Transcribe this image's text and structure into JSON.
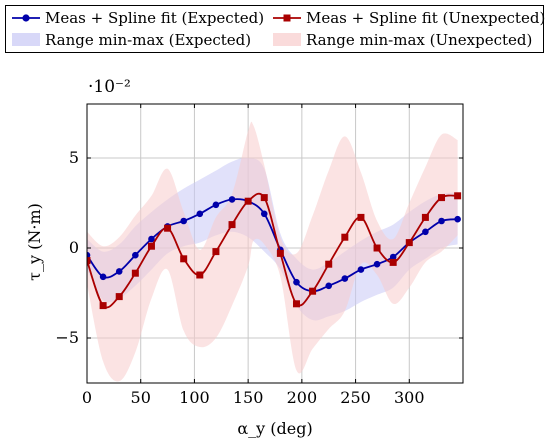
{
  "chart_data": {
    "type": "line",
    "xlabel": "α_y (deg)",
    "ylabel": "τ_y (N·m)",
    "y_scale_label": "·10⁻²",
    "xlim": [
      0,
      350
    ],
    "ylim": [
      -7.5,
      8
    ],
    "x_ticks": [
      0,
      50,
      100,
      150,
      200,
      250,
      300
    ],
    "y_ticks": [
      -5,
      0,
      5
    ],
    "grid": true,
    "legend_position": "top",
    "series": [
      {
        "name": "Meas + Spline fit (Expected)",
        "kind": "line",
        "color": "#0000aa",
        "marker": "circle",
        "x": [
          0,
          15,
          30,
          45,
          60,
          75,
          90,
          105,
          120,
          135,
          150,
          165,
          180,
          195,
          210,
          225,
          240,
          255,
          270,
          285,
          300,
          315,
          330,
          345
        ],
        "y": [
          -0.4,
          -1.6,
          -1.3,
          -0.4,
          0.5,
          1.2,
          1.5,
          1.9,
          2.4,
          2.7,
          2.6,
          1.9,
          -0.1,
          -1.9,
          -2.4,
          -2.1,
          -1.7,
          -1.2,
          -0.9,
          -0.5,
          0.3,
          0.9,
          1.5,
          1.6
        ]
      },
      {
        "name": "Meas + Spline fit (Unexpected)",
        "kind": "line",
        "color": "#aa0000",
        "marker": "square",
        "x": [
          0,
          15,
          30,
          45,
          60,
          75,
          90,
          105,
          120,
          135,
          150,
          165,
          180,
          195,
          210,
          225,
          240,
          255,
          270,
          285,
          300,
          315,
          330,
          345
        ],
        "y": [
          -0.7,
          -3.2,
          -2.7,
          -1.4,
          0.1,
          1.1,
          -0.6,
          -1.5,
          -0.2,
          1.3,
          2.6,
          2.8,
          -0.3,
          -3.1,
          -2.4,
          -0.9,
          0.6,
          1.7,
          0.0,
          -0.8,
          0.3,
          1.7,
          2.8,
          2.9
        ]
      },
      {
        "name": "Range min-max (Expected)",
        "kind": "band",
        "color": "#c8c8f5",
        "x": [
          0,
          15,
          30,
          45,
          60,
          75,
          90,
          105,
          120,
          135,
          150,
          165,
          180,
          195,
          210,
          225,
          240,
          255,
          270,
          285,
          300,
          315,
          330,
          345
        ],
        "upper": [
          0.5,
          -0.2,
          0.2,
          1.2,
          2.0,
          2.7,
          3.3,
          3.8,
          4.3,
          4.8,
          5.0,
          4.4,
          0.8,
          -0.6,
          -1.2,
          -0.8,
          -0.2,
          0.4,
          0.9,
          1.3,
          2.0,
          2.6,
          3.0,
          3.1
        ],
        "lower": [
          -1.2,
          -2.9,
          -2.8,
          -2.1,
          -1.2,
          -0.3,
          0.1,
          0.3,
          0.7,
          0.9,
          0.6,
          -0.2,
          -1.2,
          -3.2,
          -4.0,
          -3.8,
          -3.5,
          -3.0,
          -2.6,
          -2.2,
          -1.2,
          -0.6,
          0.0,
          0.2
        ]
      },
      {
        "name": "Range min-max (Unexpected)",
        "kind": "band",
        "color": "#f8cccc",
        "x": [
          0,
          15,
          30,
          45,
          60,
          75,
          90,
          105,
          120,
          135,
          150,
          155,
          165,
          180,
          195,
          210,
          225,
          240,
          255,
          270,
          285,
          300,
          315,
          330,
          345
        ],
        "upper": [
          0.9,
          0.1,
          0.6,
          1.8,
          2.9,
          4.4,
          2.0,
          -0.1,
          1.7,
          3.0,
          6.5,
          6.8,
          4.6,
          0.6,
          -0.3,
          1.8,
          4.3,
          6.2,
          4.2,
          1.5,
          0.5,
          2.5,
          4.5,
          6.3,
          6.0
        ],
        "lower": [
          -2.0,
          -6.3,
          -7.4,
          -5.8,
          -2.8,
          -1.2,
          -4.6,
          -5.5,
          -5.0,
          -3.2,
          -1.0,
          0.4,
          0.2,
          -1.6,
          -6.8,
          -5.6,
          -4.5,
          -3.5,
          -0.9,
          -1.5,
          -3.1,
          -2.2,
          -0.8,
          -0.2,
          0.7
        ]
      }
    ]
  }
}
